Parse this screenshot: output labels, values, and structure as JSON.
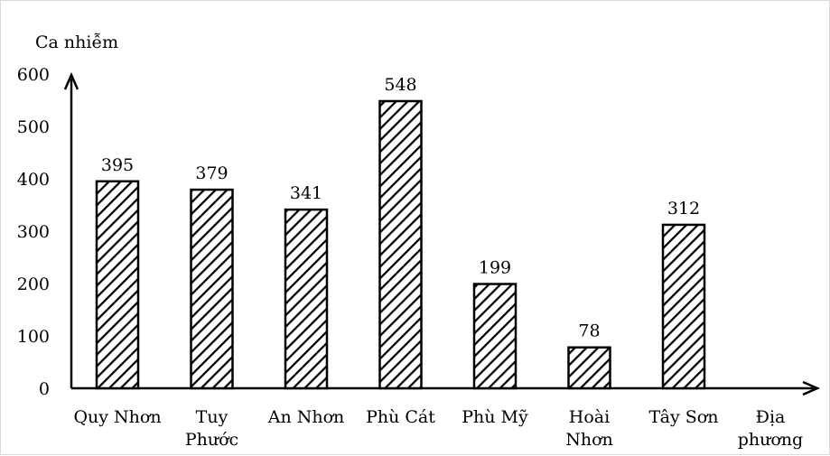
{
  "chart_data": {
    "type": "bar",
    "ylabel": "Ca nhiễm",
    "xlabel": "Địa phương",
    "ylim": [
      0,
      600
    ],
    "yticks": [
      0,
      100,
      200,
      300,
      400,
      500,
      600
    ],
    "grid": false,
    "legend": "none",
    "bar_pattern": "diagonal-hatch",
    "colors": {
      "bar_stroke": "#000000",
      "hatch": "#000000",
      "bar_fill": "#ffffff"
    },
    "categories": [
      [
        "Quy Nhơn"
      ],
      [
        "Tuy",
        "Phước"
      ],
      [
        "An Nhơn"
      ],
      [
        "Phù Cát"
      ],
      [
        "Phù Mỹ"
      ],
      [
        "Hoài",
        "Nhơn"
      ],
      [
        "Tây Sơn"
      ]
    ],
    "values": [
      395,
      379,
      341,
      548,
      199,
      78,
      312
    ],
    "data_labels": [
      "395",
      "379",
      "341",
      "548",
      "199",
      "78",
      "312"
    ]
  }
}
